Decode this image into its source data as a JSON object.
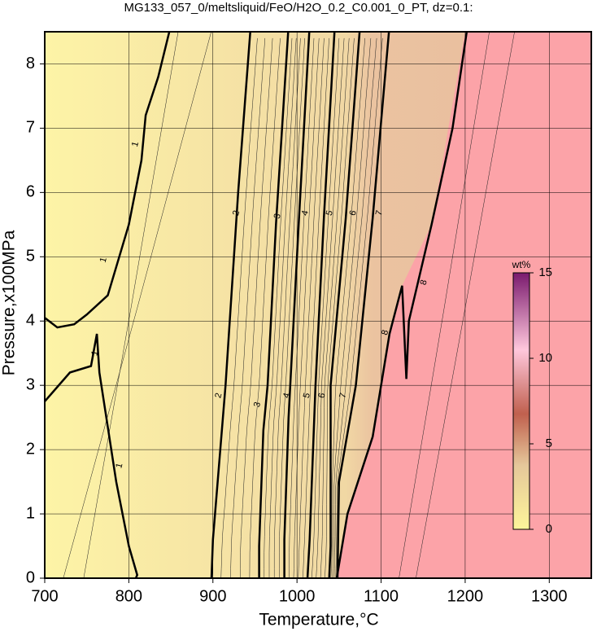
{
  "chart_data": {
    "type": "contour",
    "title": "MG133_057_0/meltsliquid/FeO/H2O_0.2_C0.001_0_PT, dz=0.1:",
    "x_label": "Temperature,°C",
    "y_label": "Pressure,x100MPa",
    "xlim": [
      700,
      1350
    ],
    "xticks": [
      700,
      800,
      900,
      1000,
      1100,
      1200,
      1300
    ],
    "ylim": [
      0,
      8.5
    ],
    "yticks": [
      0,
      1,
      2,
      3,
      4,
      5,
      6,
      7,
      8
    ],
    "grid": true,
    "contour_levels": [
      1,
      2,
      3,
      4,
      5,
      6,
      7,
      8
    ],
    "colorbar": {
      "label": "wt%",
      "lim": [
        0,
        15
      ],
      "ticks": [
        0,
        5,
        10,
        15
      ]
    }
  }
}
